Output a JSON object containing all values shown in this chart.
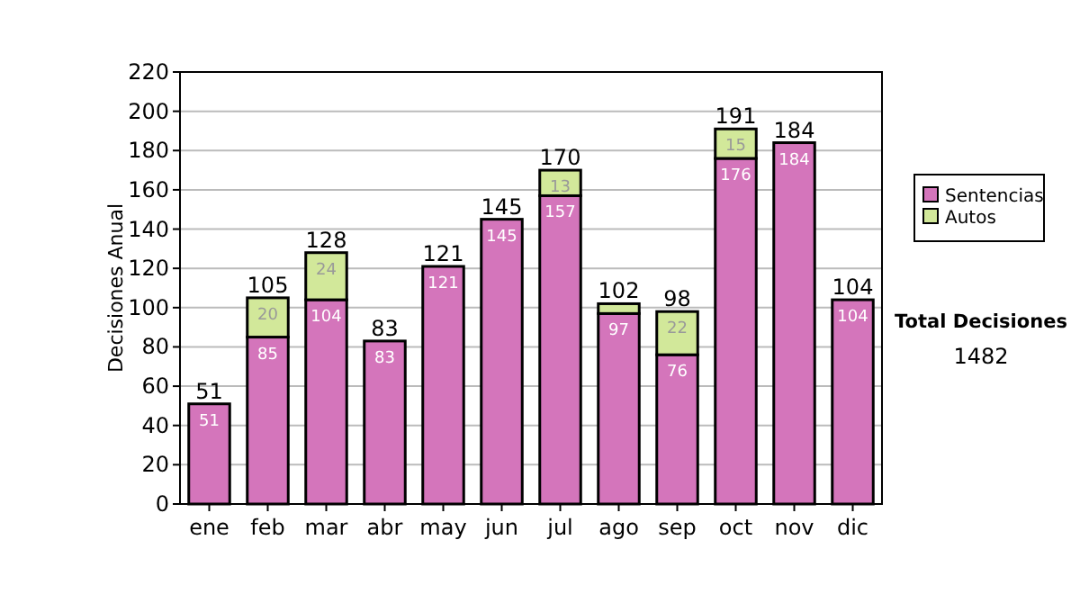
{
  "chart_data": {
    "type": "bar",
    "stacked": true,
    "ylabel": "Decisiones Anual",
    "categories": [
      "ene",
      "feb",
      "mar",
      "abr",
      "may",
      "jun",
      "jul",
      "ago",
      "sep",
      "oct",
      "nov",
      "dic"
    ],
    "series": [
      {
        "name": "Sentencias",
        "color": "#d475bb",
        "values": [
          51,
          85,
          104,
          83,
          121,
          145,
          157,
          97,
          76,
          176,
          184,
          104
        ],
        "value_labels": [
          "51",
          "85",
          "104",
          "83",
          "121",
          "145",
          "157",
          "97",
          "76",
          "176",
          "184",
          "104"
        ]
      },
      {
        "name": "Autos",
        "color": "#d2e89a",
        "values": [
          null,
          20,
          24,
          null,
          null,
          null,
          13,
          5,
          22,
          15,
          null,
          null
        ],
        "value_labels": [
          null,
          "20",
          "24",
          null,
          null,
          null,
          "13",
          null,
          "22",
          "15",
          null,
          null
        ]
      }
    ],
    "totals": [
      "51",
      "105",
      "128",
      "83",
      "121",
      "145",
      "170",
      "102",
      "98",
      "191",
      "184",
      "104"
    ],
    "ylim": [
      0,
      220
    ],
    "yticks": [
      0,
      20,
      40,
      60,
      80,
      100,
      120,
      140,
      160,
      180,
      200,
      220
    ],
    "grid": "y",
    "legend": "right",
    "annotations": [
      "Total Decisiones",
      "1482"
    ]
  }
}
